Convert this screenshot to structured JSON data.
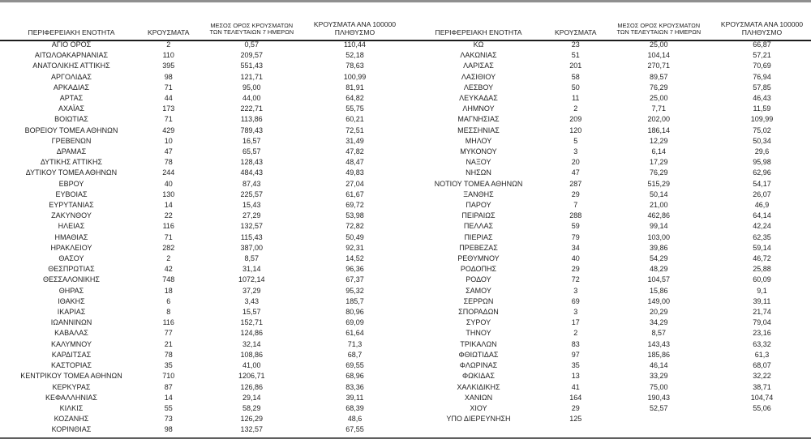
{
  "colors": {
    "text": "#1f1f1f",
    "top_rule": "#8f8f8f",
    "header_rule": "#1c1c1c",
    "bottom_rule": "#5f5f5f",
    "background": "#ffffff"
  },
  "headers": {
    "region": "ΠΕΡΙΦΕΡΕΙΑΚΗ ΕΝΟΤΗΤΑ",
    "cases": "ΚΡΟΥΣΜΑΤΑ",
    "avg7_line1": "ΜΕΣΟΣ ΟΡΟΣ ΚΡΟΥΣΜΑΤΩΝ",
    "avg7_line2": "ΤΩΝ ΤΕΛΕΥΤΑΙΩΝ 7 ΗΜΕΡΩΝ",
    "per100k_line1": "ΚΡΟΥΣΜΑΤΑ ΑΝΑ 100000",
    "per100k_line2": "ΠΛΗΘΥΣΜΟ"
  },
  "left_rows": [
    {
      "region": "ΑΓΙΟ ΟΡΟΣ",
      "cases": "2",
      "avg7": "0,57",
      "per100k": "110,44"
    },
    {
      "region": "ΑΙΤΩΛΟΑΚΑΡΝΑΝΙΑΣ",
      "cases": "110",
      "avg7": "209,57",
      "per100k": "52,18"
    },
    {
      "region": "ΑΝΑΤΟΛΙΚΗΣ ΑΤΤΙΚΗΣ",
      "cases": "395",
      "avg7": "551,43",
      "per100k": "78,63"
    },
    {
      "region": "ΑΡΓΟΛΙΔΑΣ",
      "cases": "98",
      "avg7": "121,71",
      "per100k": "100,99"
    },
    {
      "region": "ΑΡΚΑΔΙΑΣ",
      "cases": "71",
      "avg7": "95,00",
      "per100k": "81,91"
    },
    {
      "region": "ΑΡΤΑΣ",
      "cases": "44",
      "avg7": "44,00",
      "per100k": "64,82"
    },
    {
      "region": "ΑΧΑΪΑΣ",
      "cases": "173",
      "avg7": "222,71",
      "per100k": "55,75"
    },
    {
      "region": "ΒΟΙΩΤΙΑΣ",
      "cases": "71",
      "avg7": "113,86",
      "per100k": "60,21"
    },
    {
      "region": "ΒΟΡΕΙΟΥ ΤΟΜΕΑ ΑΘΗΝΩΝ",
      "cases": "429",
      "avg7": "789,43",
      "per100k": "72,51"
    },
    {
      "region": "ΓΡΕΒΕΝΩΝ",
      "cases": "10",
      "avg7": "16,57",
      "per100k": "31,49"
    },
    {
      "region": "ΔΡΑΜΑΣ",
      "cases": "47",
      "avg7": "65,57",
      "per100k": "47,82"
    },
    {
      "region": "ΔΥΤΙΚΗΣ ΑΤΤΙΚΗΣ",
      "cases": "78",
      "avg7": "128,43",
      "per100k": "48,47"
    },
    {
      "region": "ΔΥΤΙΚΟΥ ΤΟΜΕΑ ΑΘΗΝΩΝ",
      "cases": "244",
      "avg7": "484,43",
      "per100k": "49,83"
    },
    {
      "region": "ΕΒΡΟΥ",
      "cases": "40",
      "avg7": "87,43",
      "per100k": "27,04"
    },
    {
      "region": "ΕΥΒΟΙΑΣ",
      "cases": "130",
      "avg7": "225,57",
      "per100k": "61,67"
    },
    {
      "region": "ΕΥΡΥΤΑΝΙΑΣ",
      "cases": "14",
      "avg7": "15,43",
      "per100k": "69,72"
    },
    {
      "region": "ΖΑΚΥΝΘΟΥ",
      "cases": "22",
      "avg7": "27,29",
      "per100k": "53,98"
    },
    {
      "region": "ΗΛΕΙΑΣ",
      "cases": "116",
      "avg7": "132,57",
      "per100k": "72,82"
    },
    {
      "region": "ΗΜΑΘΙΑΣ",
      "cases": "71",
      "avg7": "115,43",
      "per100k": "50,49"
    },
    {
      "region": "ΗΡΑΚΛΕΙΟΥ",
      "cases": "282",
      "avg7": "387,00",
      "per100k": "92,31"
    },
    {
      "region": "ΘΑΣΟΥ",
      "cases": "2",
      "avg7": "8,57",
      "per100k": "14,52"
    },
    {
      "region": "ΘΕΣΠΡΩΤΙΑΣ",
      "cases": "42",
      "avg7": "31,14",
      "per100k": "96,36"
    },
    {
      "region": "ΘΕΣΣΑΛΟΝΙΚΗΣ",
      "cases": "748",
      "avg7": "1072,14",
      "per100k": "67,37"
    },
    {
      "region": "ΘΗΡΑΣ",
      "cases": "18",
      "avg7": "37,29",
      "per100k": "95,32"
    },
    {
      "region": "ΙΘΑΚΗΣ",
      "cases": "6",
      "avg7": "3,43",
      "per100k": "185,7"
    },
    {
      "region": "ΙΚΑΡΙΑΣ",
      "cases": "8",
      "avg7": "15,57",
      "per100k": "80,96"
    },
    {
      "region": "ΙΩΑΝΝΙΝΩΝ",
      "cases": "116",
      "avg7": "152,71",
      "per100k": "69,09"
    },
    {
      "region": "ΚΑΒΑΛΑΣ",
      "cases": "77",
      "avg7": "124,86",
      "per100k": "61,64"
    },
    {
      "region": "ΚΑΛΥΜΝΟΥ",
      "cases": "21",
      "avg7": "32,14",
      "per100k": "71,3"
    },
    {
      "region": "ΚΑΡΔΙΤΣΑΣ",
      "cases": "78",
      "avg7": "108,86",
      "per100k": "68,7"
    },
    {
      "region": "ΚΑΣΤΟΡΙΑΣ",
      "cases": "35",
      "avg7": "41,00",
      "per100k": "69,55"
    },
    {
      "region": "ΚΕΝΤΡΙΚΟΥ ΤΟΜΕΑ ΑΘΗΝΩΝ",
      "cases": "710",
      "avg7": "1206,71",
      "per100k": "68,96"
    },
    {
      "region": "ΚΕΡΚΥΡΑΣ",
      "cases": "87",
      "avg7": "126,86",
      "per100k": "83,36"
    },
    {
      "region": "ΚΕΦΑΛΛΗΝΙΑΣ",
      "cases": "14",
      "avg7": "29,14",
      "per100k": "39,11"
    },
    {
      "region": "ΚΙΛΚΙΣ",
      "cases": "55",
      "avg7": "58,29",
      "per100k": "68,39"
    },
    {
      "region": "ΚΟΖΑΝΗΣ",
      "cases": "73",
      "avg7": "126,29",
      "per100k": "48,6"
    },
    {
      "region": "ΚΟΡΙΝΘΙΑΣ",
      "cases": "98",
      "avg7": "132,57",
      "per100k": "67,55"
    }
  ],
  "right_rows": [
    {
      "region": "ΚΩ",
      "cases": "23",
      "avg7": "25,00",
      "per100k": "66,87"
    },
    {
      "region": "ΛΑΚΩΝΙΑΣ",
      "cases": "51",
      "avg7": "104,14",
      "per100k": "57,21"
    },
    {
      "region": "ΛΑΡΙΣΑΣ",
      "cases": "201",
      "avg7": "270,71",
      "per100k": "70,69"
    },
    {
      "region": "ΛΑΣΙΘΙΟΥ",
      "cases": "58",
      "avg7": "89,57",
      "per100k": "76,94"
    },
    {
      "region": "ΛΕΣΒΟΥ",
      "cases": "50",
      "avg7": "76,29",
      "per100k": "57,85"
    },
    {
      "region": "ΛΕΥΚΑΔΑΣ",
      "cases": "11",
      "avg7": "25,00",
      "per100k": "46,43"
    },
    {
      "region": "ΛΗΜΝΟΥ",
      "cases": "2",
      "avg7": "7,71",
      "per100k": "11,59"
    },
    {
      "region": "ΜΑΓΝΗΣΙΑΣ",
      "cases": "209",
      "avg7": "202,00",
      "per100k": "109,99"
    },
    {
      "region": "ΜΕΣΣΗΝΙΑΣ",
      "cases": "120",
      "avg7": "186,14",
      "per100k": "75,02"
    },
    {
      "region": "ΜΗΛΟΥ",
      "cases": "5",
      "avg7": "12,29",
      "per100k": "50,34"
    },
    {
      "region": "ΜΥΚΟΝΟΥ",
      "cases": "3",
      "avg7": "6,14",
      "per100k": "29,6"
    },
    {
      "region": "ΝΑΞΟΥ",
      "cases": "20",
      "avg7": "17,29",
      "per100k": "95,98"
    },
    {
      "region": "ΝΗΣΩΝ",
      "cases": "47",
      "avg7": "76,29",
      "per100k": "62,96"
    },
    {
      "region": "ΝΟΤΙΟΥ ΤΟΜΕΑ ΑΘΗΝΩΝ",
      "cases": "287",
      "avg7": "515,29",
      "per100k": "54,17"
    },
    {
      "region": "ΞΑΝΘΗΣ",
      "cases": "29",
      "avg7": "50,14",
      "per100k": "26,07"
    },
    {
      "region": "ΠΑΡΟΥ",
      "cases": "7",
      "avg7": "21,00",
      "per100k": "46,9"
    },
    {
      "region": "ΠΕΙΡΑΙΩΣ",
      "cases": "288",
      "avg7": "462,86",
      "per100k": "64,14"
    },
    {
      "region": "ΠΕΛΛΑΣ",
      "cases": "59",
      "avg7": "99,14",
      "per100k": "42,24"
    },
    {
      "region": "ΠΙΕΡΙΑΣ",
      "cases": "79",
      "avg7": "103,00",
      "per100k": "62,35"
    },
    {
      "region": "ΠΡΕΒΕΖΑΣ",
      "cases": "34",
      "avg7": "39,86",
      "per100k": "59,14"
    },
    {
      "region": "ΡΕΘΥΜΝΟΥ",
      "cases": "40",
      "avg7": "54,29",
      "per100k": "46,72"
    },
    {
      "region": "ΡΟΔΟΠΗΣ",
      "cases": "29",
      "avg7": "48,29",
      "per100k": "25,88"
    },
    {
      "region": "ΡΟΔΟΥ",
      "cases": "72",
      "avg7": "104,57",
      "per100k": "60,09"
    },
    {
      "region": "ΣΑΜΟΥ",
      "cases": "3",
      "avg7": "15,86",
      "per100k": "9,1"
    },
    {
      "region": "ΣΕΡΡΩΝ",
      "cases": "69",
      "avg7": "149,00",
      "per100k": "39,11"
    },
    {
      "region": "ΣΠΟΡΑΔΩΝ",
      "cases": "3",
      "avg7": "20,29",
      "per100k": "21,74"
    },
    {
      "region": "ΣΥΡΟΥ",
      "cases": "17",
      "avg7": "34,29",
      "per100k": "79,04"
    },
    {
      "region": "ΤΗΝΟΥ",
      "cases": "2",
      "avg7": "8,57",
      "per100k": "23,16"
    },
    {
      "region": "ΤΡΙΚΑΛΩΝ",
      "cases": "83",
      "avg7": "143,43",
      "per100k": "63,32"
    },
    {
      "region": "ΦΘΙΩΤΙΔΑΣ",
      "cases": "97",
      "avg7": "185,86",
      "per100k": "61,3"
    },
    {
      "region": "ΦΛΩΡΙΝΑΣ",
      "cases": "35",
      "avg7": "46,14",
      "per100k": "68,07"
    },
    {
      "region": "ΦΩΚΙΔΑΣ",
      "cases": "13",
      "avg7": "33,29",
      "per100k": "32,22"
    },
    {
      "region": "ΧΑΛΚΙΔΙΚΗΣ",
      "cases": "41",
      "avg7": "75,00",
      "per100k": "38,71"
    },
    {
      "region": "ΧΑΝΙΩΝ",
      "cases": "164",
      "avg7": "190,43",
      "per100k": "104,74"
    },
    {
      "region": "ΧΙΟΥ",
      "cases": "29",
      "avg7": "52,57",
      "per100k": "55,06"
    },
    {
      "region": "ΥΠΟ ΔΙΕΡΕΥΝΗΣΗ",
      "cases": "125",
      "avg7": "",
      "per100k": ""
    }
  ]
}
